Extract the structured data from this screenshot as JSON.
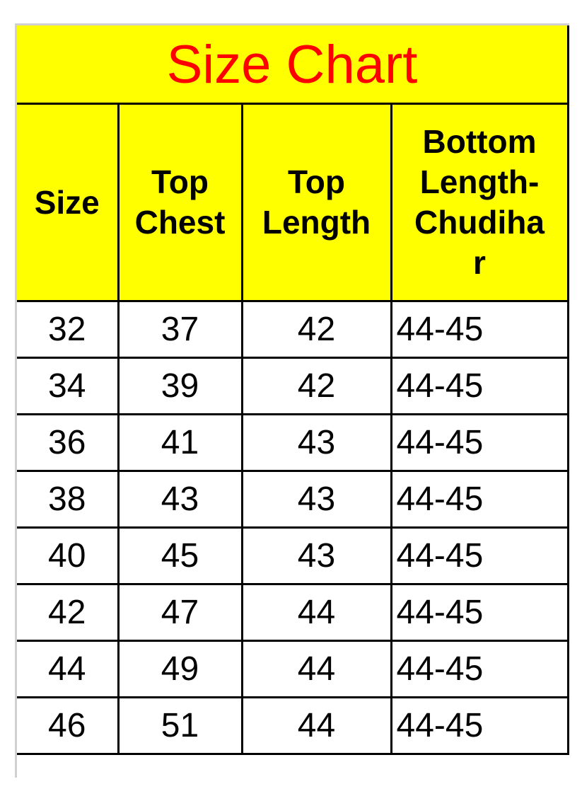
{
  "title": "Size Chart",
  "colors": {
    "header_bg": "#ffff00",
    "title_text": "#ff0000"
  },
  "columns": [
    "Size",
    "Top Chest",
    "Top Length",
    "Bottom Length-Chudihar"
  ],
  "header_lines": [
    [
      "Size"
    ],
    [
      "Top",
      "Chest"
    ],
    [
      "Top",
      "Length"
    ],
    [
      "Bottom",
      "Length-",
      "Chudiha",
      "r"
    ]
  ],
  "rows": [
    [
      "32",
      "37",
      "42",
      "44-45"
    ],
    [
      "34",
      "39",
      "42",
      "44-45"
    ],
    [
      "36",
      "41",
      "43",
      "44-45"
    ],
    [
      "38",
      "43",
      "43",
      "44-45"
    ],
    [
      "40",
      "45",
      "43",
      "44-45"
    ],
    [
      "42",
      "47",
      "44",
      "44-45"
    ],
    [
      "44",
      "49",
      "44",
      "44-45"
    ],
    [
      "46",
      "51",
      "44",
      "44-45"
    ]
  ]
}
